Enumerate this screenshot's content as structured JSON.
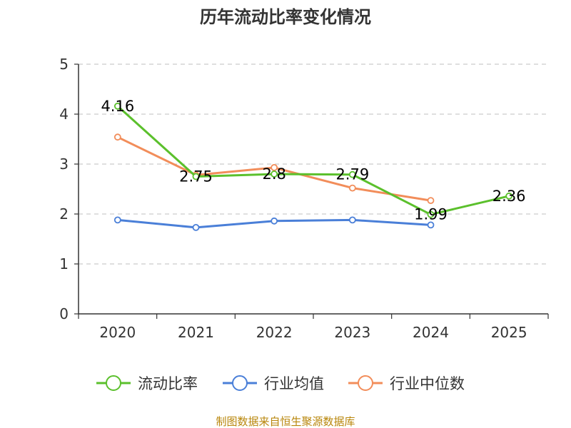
{
  "chart_data": {
    "type": "line",
    "title": "历年流动比率变化情况",
    "categories": [
      "2020",
      "2021",
      "2022",
      "2023",
      "2024",
      "2025"
    ],
    "ylim": [
      0,
      5
    ],
    "yticks": [
      "0",
      "1",
      "2",
      "3",
      "4",
      "5"
    ],
    "grid": true,
    "legend_position": "bottom",
    "series": [
      {
        "name": "行业均值",
        "color": "#4a7fd8",
        "values": [
          1.88,
          1.73,
          1.86,
          1.88,
          1.78,
          null
        ],
        "show_labels": false
      },
      {
        "name": "行业中位数",
        "color": "#f28d5a",
        "values": [
          3.54,
          2.78,
          2.93,
          2.52,
          2.27,
          null
        ],
        "show_labels": false
      },
      {
        "name": "流动比率",
        "color": "#5bc02c",
        "values": [
          4.16,
          2.75,
          2.8,
          2.79,
          1.99,
          2.36
        ],
        "show_labels": true,
        "labels": [
          "4.16",
          "2.75",
          "2.8",
          "2.79",
          "1.99",
          "2.36"
        ]
      }
    ],
    "legend": [
      "流动比率",
      "行业均值",
      "行业中位数"
    ]
  },
  "footer": {
    "source": "制图数据来自恒生聚源数据库"
  }
}
